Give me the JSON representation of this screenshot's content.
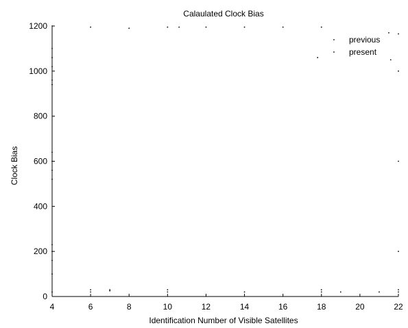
{
  "chart_data": {
    "type": "scatter",
    "title": "Calaulated Clock Bias",
    "xlabel": "Identification Number of Visible Satellites",
    "ylabel": "Clock Bias",
    "xlim": [
      4,
      22
    ],
    "ylim": [
      0,
      1200
    ],
    "xticks": [
      "4",
      "6",
      "8",
      "10",
      "12",
      "14",
      "16",
      "18",
      "20",
      "22"
    ],
    "yticks": [
      "0",
      "200",
      "400",
      "600",
      "800",
      "1000",
      "1200"
    ],
    "grid": false,
    "legend_position": "top-right",
    "series": [
      {
        "name": "previous",
        "marker": "dot",
        "color": "#000000",
        "points": [
          [
            4,
            20
          ],
          [
            4,
            960
          ],
          [
            4,
            1060
          ],
          [
            4,
            1100
          ],
          [
            4,
            600
          ],
          [
            4,
            640
          ],
          [
            4,
            200
          ],
          [
            6,
            20
          ],
          [
            6,
            1195
          ],
          [
            7,
            30
          ],
          [
            8,
            1190
          ],
          [
            10,
            20
          ],
          [
            10,
            1195
          ],
          [
            10.6,
            1195
          ],
          [
            14,
            1195
          ],
          [
            17.8,
            1060
          ],
          [
            18,
            1195
          ],
          [
            18,
            20
          ],
          [
            19,
            20
          ],
          [
            21,
            20
          ],
          [
            21.6,
            1050
          ],
          [
            22,
            1000
          ],
          [
            22,
            1165
          ],
          [
            22,
            20
          ]
        ]
      },
      {
        "name": "present",
        "marker": "dot",
        "color": "#000000",
        "points": [
          [
            4,
            940
          ],
          [
            4,
            1020
          ],
          [
            4,
            560
          ],
          [
            4,
            520
          ],
          [
            4,
            160
          ],
          [
            4,
            230
          ],
          [
            4,
            100
          ],
          [
            6,
            30
          ],
          [
            7,
            25
          ],
          [
            10,
            30
          ],
          [
            12,
            1195
          ],
          [
            14,
            20
          ],
          [
            16,
            1195
          ],
          [
            18,
            30
          ],
          [
            21.5,
            1170
          ],
          [
            22,
            600
          ],
          [
            22,
            200
          ],
          [
            22,
            30
          ]
        ]
      }
    ]
  }
}
